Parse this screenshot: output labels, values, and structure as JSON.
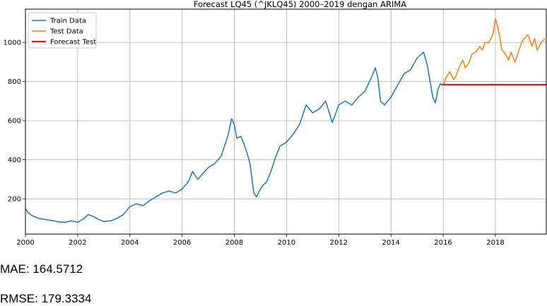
{
  "chart_data": {
    "type": "line",
    "title": "Forecast LQ45 (^JKLQ45) 2000–2019 dengan ARIMA",
    "xlabel": "",
    "ylabel": "",
    "xlim": [
      2000.0,
      2019.95
    ],
    "ylim": [
      20,
      1170
    ],
    "x_ticks": [
      2000,
      2002,
      2004,
      2006,
      2008,
      2010,
      2012,
      2014,
      2016,
      2018
    ],
    "y_ticks": [
      200,
      400,
      600,
      800,
      1000
    ],
    "grid": true,
    "legend_position": "top-left",
    "series": [
      {
        "name": "Train Data",
        "color": "#1f77b4",
        "points": [
          [
            2000.0,
            150
          ],
          [
            2000.1,
            130
          ],
          [
            2000.25,
            115
          ],
          [
            2000.5,
            100
          ],
          [
            2000.75,
            95
          ],
          [
            2001.0,
            90
          ],
          [
            2001.25,
            83
          ],
          [
            2001.5,
            80
          ],
          [
            2001.75,
            88
          ],
          [
            2002.0,
            80
          ],
          [
            2002.25,
            100
          ],
          [
            2002.4,
            120
          ],
          [
            2002.6,
            110
          ],
          [
            2002.8,
            95
          ],
          [
            2003.0,
            85
          ],
          [
            2003.25,
            87
          ],
          [
            2003.5,
            100
          ],
          [
            2003.75,
            120
          ],
          [
            2004.0,
            160
          ],
          [
            2004.25,
            175
          ],
          [
            2004.5,
            165
          ],
          [
            2004.75,
            190
          ],
          [
            2005.0,
            210
          ],
          [
            2005.25,
            230
          ],
          [
            2005.5,
            240
          ],
          [
            2005.75,
            230
          ],
          [
            2006.0,
            250
          ],
          [
            2006.25,
            290
          ],
          [
            2006.4,
            340
          ],
          [
            2006.6,
            300
          ],
          [
            2006.8,
            330
          ],
          [
            2007.0,
            360
          ],
          [
            2007.25,
            380
          ],
          [
            2007.5,
            420
          ],
          [
            2007.75,
            520
          ],
          [
            2007.9,
            610
          ],
          [
            2008.0,
            580
          ],
          [
            2008.1,
            510
          ],
          [
            2008.25,
            520
          ],
          [
            2008.4,
            470
          ],
          [
            2008.5,
            430
          ],
          [
            2008.6,
            380
          ],
          [
            2008.75,
            230
          ],
          [
            2008.85,
            210
          ],
          [
            2009.0,
            250
          ],
          [
            2009.1,
            270
          ],
          [
            2009.25,
            290
          ],
          [
            2009.4,
            340
          ],
          [
            2009.6,
            420
          ],
          [
            2009.75,
            470
          ],
          [
            2010.0,
            490
          ],
          [
            2010.25,
            530
          ],
          [
            2010.5,
            580
          ],
          [
            2010.75,
            680
          ],
          [
            2011.0,
            640
          ],
          [
            2011.25,
            660
          ],
          [
            2011.5,
            700
          ],
          [
            2011.75,
            590
          ],
          [
            2012.0,
            680
          ],
          [
            2012.25,
            700
          ],
          [
            2012.5,
            680
          ],
          [
            2012.75,
            720
          ],
          [
            2013.0,
            750
          ],
          [
            2013.25,
            820
          ],
          [
            2013.4,
            870
          ],
          [
            2013.5,
            820
          ],
          [
            2013.6,
            700
          ],
          [
            2013.75,
            680
          ],
          [
            2014.0,
            720
          ],
          [
            2014.25,
            780
          ],
          [
            2014.5,
            840
          ],
          [
            2014.75,
            860
          ],
          [
            2015.0,
            920
          ],
          [
            2015.25,
            950
          ],
          [
            2015.4,
            880
          ],
          [
            2015.5,
            800
          ],
          [
            2015.6,
            720
          ],
          [
            2015.7,
            690
          ],
          [
            2015.8,
            760
          ],
          [
            2015.9,
            790
          ],
          [
            2015.97,
            780
          ]
        ]
      },
      {
        "name": "Test Data",
        "color": "#ff7f0e",
        "points": [
          [
            2016.0,
            780
          ],
          [
            2016.1,
            820
          ],
          [
            2016.25,
            850
          ],
          [
            2016.4,
            810
          ],
          [
            2016.5,
            830
          ],
          [
            2016.6,
            870
          ],
          [
            2016.75,
            910
          ],
          [
            2016.85,
            870
          ],
          [
            2017.0,
            900
          ],
          [
            2017.1,
            940
          ],
          [
            2017.25,
            950
          ],
          [
            2017.4,
            980
          ],
          [
            2017.5,
            960
          ],
          [
            2017.6,
            1000
          ],
          [
            2017.75,
            1000
          ],
          [
            2017.9,
            1040
          ],
          [
            2018.0,
            1120
          ],
          [
            2018.05,
            1100
          ],
          [
            2018.15,
            1040
          ],
          [
            2018.25,
            960
          ],
          [
            2018.4,
            940
          ],
          [
            2018.5,
            910
          ],
          [
            2018.6,
            950
          ],
          [
            2018.75,
            900
          ],
          [
            2018.9,
            960
          ],
          [
            2019.0,
            1000
          ],
          [
            2019.1,
            1020
          ],
          [
            2019.25,
            1040
          ],
          [
            2019.4,
            980
          ],
          [
            2019.5,
            1020
          ],
          [
            2019.6,
            960
          ],
          [
            2019.75,
            1000
          ],
          [
            2019.9,
            1020
          ]
        ]
      },
      {
        "name": "Forecast Test",
        "color": "#e31a1c",
        "points": [
          [
            2015.95,
            784
          ],
          [
            2019.95,
            784
          ]
        ]
      }
    ]
  },
  "metrics": {
    "mae": "MAE: 164.5712",
    "rmse": "RMSE: 179.3334"
  }
}
